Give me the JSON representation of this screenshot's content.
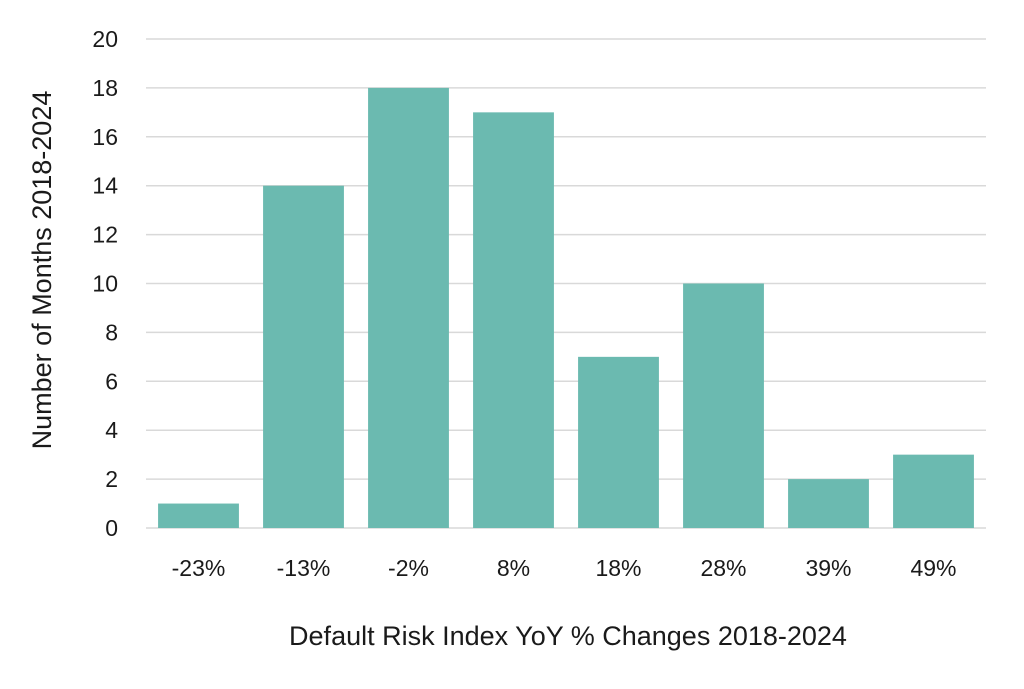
{
  "chart_data": {
    "type": "bar",
    "title": "",
    "xlabel": "Default Risk Index YoY % Changes 2018-2024",
    "ylabel": "Number of Months 2018-2024",
    "categories": [
      "-23%",
      "-13%",
      "-2%",
      "8%",
      "18%",
      "28%",
      "39%",
      "49%"
    ],
    "values": [
      1,
      14,
      18,
      17,
      7,
      10,
      2,
      3
    ],
    "ylim": [
      0,
      20
    ],
    "yticks": [
      0,
      2,
      4,
      6,
      8,
      10,
      12,
      14,
      16,
      18,
      20
    ],
    "grid": true,
    "legend": "none",
    "bar_color": "#6bbab0",
    "grid_color": "#d9d9d9"
  }
}
